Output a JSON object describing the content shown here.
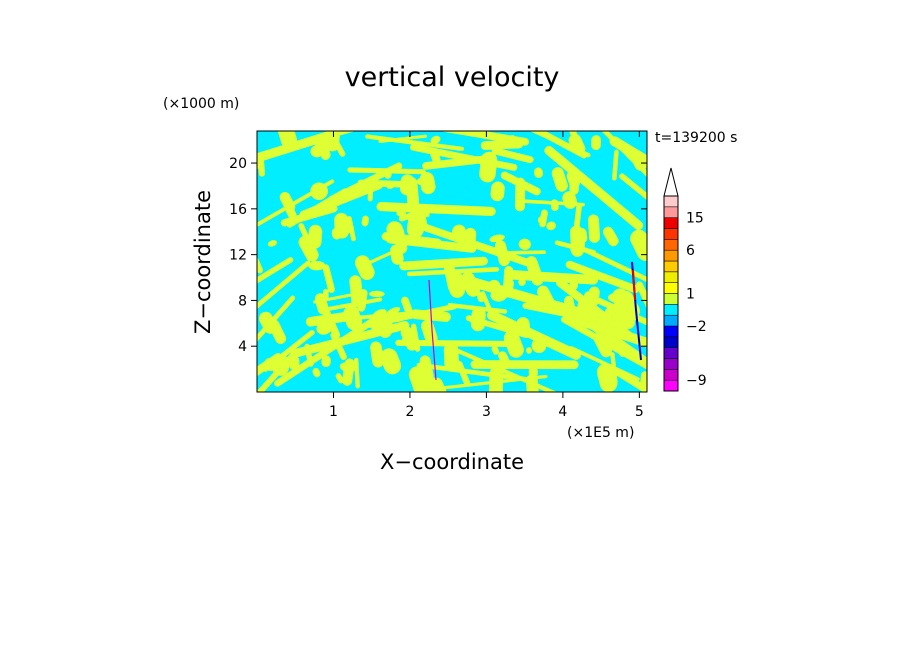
{
  "chart_data": {
    "type": "heatmap",
    "title": "vertical velocity",
    "xlabel": "X−coordinate",
    "ylabel": "Z−coordinate",
    "x_unit": "(×1E5 m)",
    "y_unit": "(×1000 m)",
    "time_label": "t=139200 s",
    "xlim": [
      0,
      5.1
    ],
    "ylim": [
      0,
      22.8
    ],
    "x_ticks": [
      1,
      2,
      3,
      4,
      5
    ],
    "y_ticks": [
      4,
      8,
      12,
      16,
      20
    ],
    "colorbar": {
      "levels": [
        -10,
        -9,
        -8,
        -6,
        -4,
        -3,
        -2,
        -1,
        0,
        1,
        2,
        3,
        4,
        6,
        9,
        12,
        15,
        18,
        21
      ],
      "colors": [
        "#ff00ff",
        "#cc00cc",
        "#9900cc",
        "#6600cc",
        "#0000cc",
        "#0000ff",
        "#00aaff",
        "#00eeff",
        "#ccff33",
        "#ffff00",
        "#eeee00",
        "#ffcc00",
        "#ff9900",
        "#ff6600",
        "#ff3300",
        "#ee0000",
        "#ff9999",
        "#ffcccc"
      ],
      "tick_labels": [
        {
          "value": -9,
          "label": "−9"
        },
        {
          "value": -2,
          "label": "−2"
        },
        {
          "value": 1,
          "label": "1"
        },
        {
          "value": 6,
          "label": "6"
        },
        {
          "value": 15,
          "label": "15"
        }
      ],
      "extend": "max"
    },
    "dominant_colors": {
      "negative": "#00eeff",
      "positive": "#ddff33"
    }
  }
}
